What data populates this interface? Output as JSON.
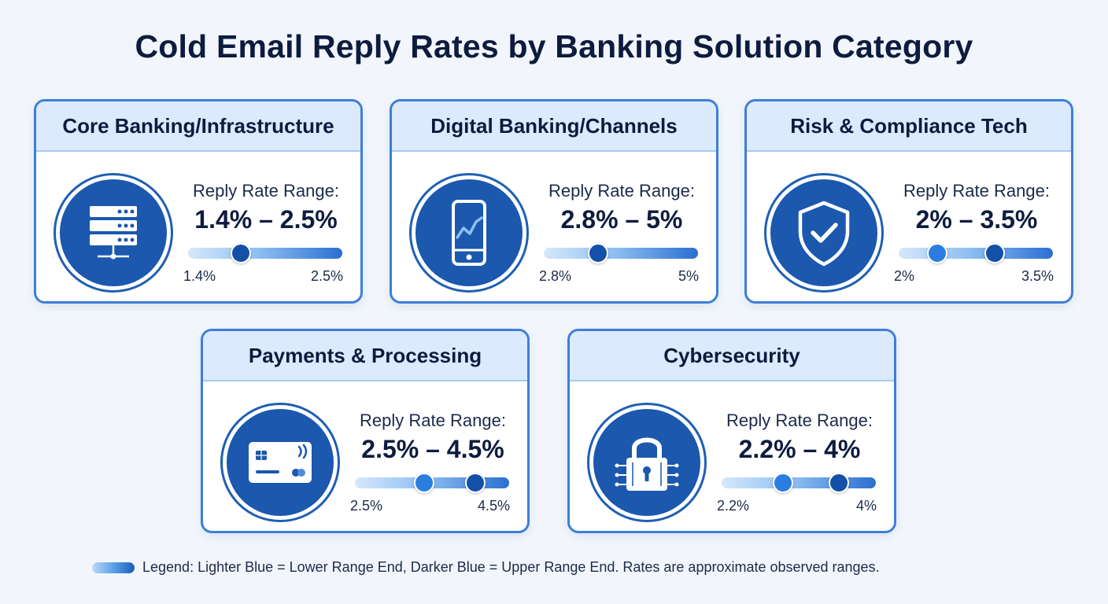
{
  "title": "Cold Email Reply Rates by Banking Solution Category",
  "range_label": "Reply Rate Range:",
  "legend": {
    "text": "Legend: Lighter Blue = Lower Range End, Darker Blue = Upper Range End. Rates are approximate observed ranges."
  },
  "colors": {
    "accent": "#1b58ae",
    "border": "#3d7fd6",
    "header_bg": "#dbeafc",
    "low_knob": "#2b7ee0",
    "high_knob": "#1550a8"
  },
  "cards": [
    {
      "category": "Core Banking/Infrastructure",
      "icon": "server-rack-icon",
      "range_text": "1.4% – 2.5%",
      "low_label": "1.4%",
      "high_label": "2.5%",
      "low": 1.4,
      "high": 2.5
    },
    {
      "category": "Digital Banking/Channels",
      "icon": "mobile-chart-icon",
      "range_text": "2.8% – 5%",
      "low_label": "2.8%",
      "high_label": "5%",
      "low": 2.8,
      "high": 5
    },
    {
      "category": "Risk & Compliance Tech",
      "icon": "shield-check-icon",
      "range_text": "2% – 3.5%",
      "low_label": "2%",
      "high_label": "3.5%",
      "low": 2,
      "high": 3.5
    },
    {
      "category": "Payments & Processing",
      "icon": "credit-card-icon",
      "range_text": "2.5% – 4.5%",
      "low_label": "2.5%",
      "high_label": "4.5%",
      "low": 2.5,
      "high": 4.5
    },
    {
      "category": "Cybersecurity",
      "icon": "circuit-lock-icon",
      "range_text": "2.2% – 4%",
      "low_label": "2.2%",
      "high_label": "4%",
      "low": 2.2,
      "high": 4
    }
  ],
  "chart_data": {
    "type": "bar",
    "title": "Cold Email Reply Rates by Banking Solution Category",
    "categories": [
      "Core Banking/Infrastructure",
      "Digital Banking/Channels",
      "Risk & Compliance Tech",
      "Payments & Processing",
      "Cybersecurity"
    ],
    "unit": "%",
    "series": [
      {
        "name": "Lower Range End",
        "values": [
          1.4,
          2.8,
          2,
          2.5,
          2.2
        ]
      },
      {
        "name": "Upper Range End",
        "values": [
          2.5,
          5,
          3.5,
          4.5,
          4
        ]
      }
    ],
    "slider_knob_positions": [
      [
        0.34,
        0.34
      ],
      [
        0.35,
        0.35
      ],
      [
        0.25,
        0.62
      ],
      [
        0.45,
        0.78
      ],
      [
        0.4,
        0.76
      ]
    ],
    "legend_position": "bottom-left"
  }
}
